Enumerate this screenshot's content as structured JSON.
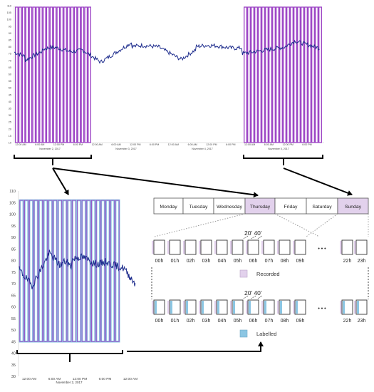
{
  "top_chart": {
    "y_ticks": [
      "110",
      "105",
      "100",
      "95",
      "90",
      "85",
      "80",
      "75",
      "70",
      "65",
      "60",
      "55",
      "50",
      "45",
      "40",
      "35",
      "30",
      "25",
      "20",
      "15",
      "10"
    ],
    "x_ticks": [
      "12:00 AM",
      "6:00 AM",
      "12:00 PM",
      "6:00 PM",
      "12:00 AM",
      "6:00 AM",
      "12:00 PM",
      "6:00 PM",
      "12:00 AM",
      "6:00 AM",
      "12:00 PM",
      "6:00 PM",
      "12:00 AM",
      "6:00 AM",
      "12:00 PM",
      "6:00 PM"
    ],
    "date_labels": [
      "November 2, 2017",
      "November 3, 2017",
      "November 4, 2017",
      "November 5, 2017"
    ]
  },
  "bottom_chart": {
    "y_ticks": [
      "110",
      "105",
      "100",
      "95",
      "90",
      "85",
      "80",
      "75",
      "70",
      "65",
      "60",
      "55",
      "50",
      "45",
      "40",
      "35",
      "30"
    ],
    "x_ticks": [
      "12:00 AM",
      "6:00 AM",
      "12:00 PM",
      "6:00 PM",
      "12:00 AM"
    ],
    "date_label": "November 2, 2017"
  },
  "week": {
    "days": [
      "Monday",
      "Tuesday",
      "Wednesday",
      "Thursday",
      "Friday",
      "Saturday",
      "Sunday"
    ]
  },
  "hours": {
    "labels": [
      "00h",
      "01h",
      "02h",
      "03h",
      "04h",
      "05h",
      "06h",
      "07h",
      "08h",
      "09h",
      "22h",
      "23h"
    ],
    "ellipsis": "• • •",
    "interval_label": "20' 40'"
  },
  "legend": {
    "recorded": "Recorded",
    "labelled": "Labelled"
  },
  "colors": {
    "recorded": "#9a3fc4",
    "recorded_fill": "#e2d1ec",
    "labelled": "#8cc6e3",
    "series": "#1c2b8c"
  }
}
